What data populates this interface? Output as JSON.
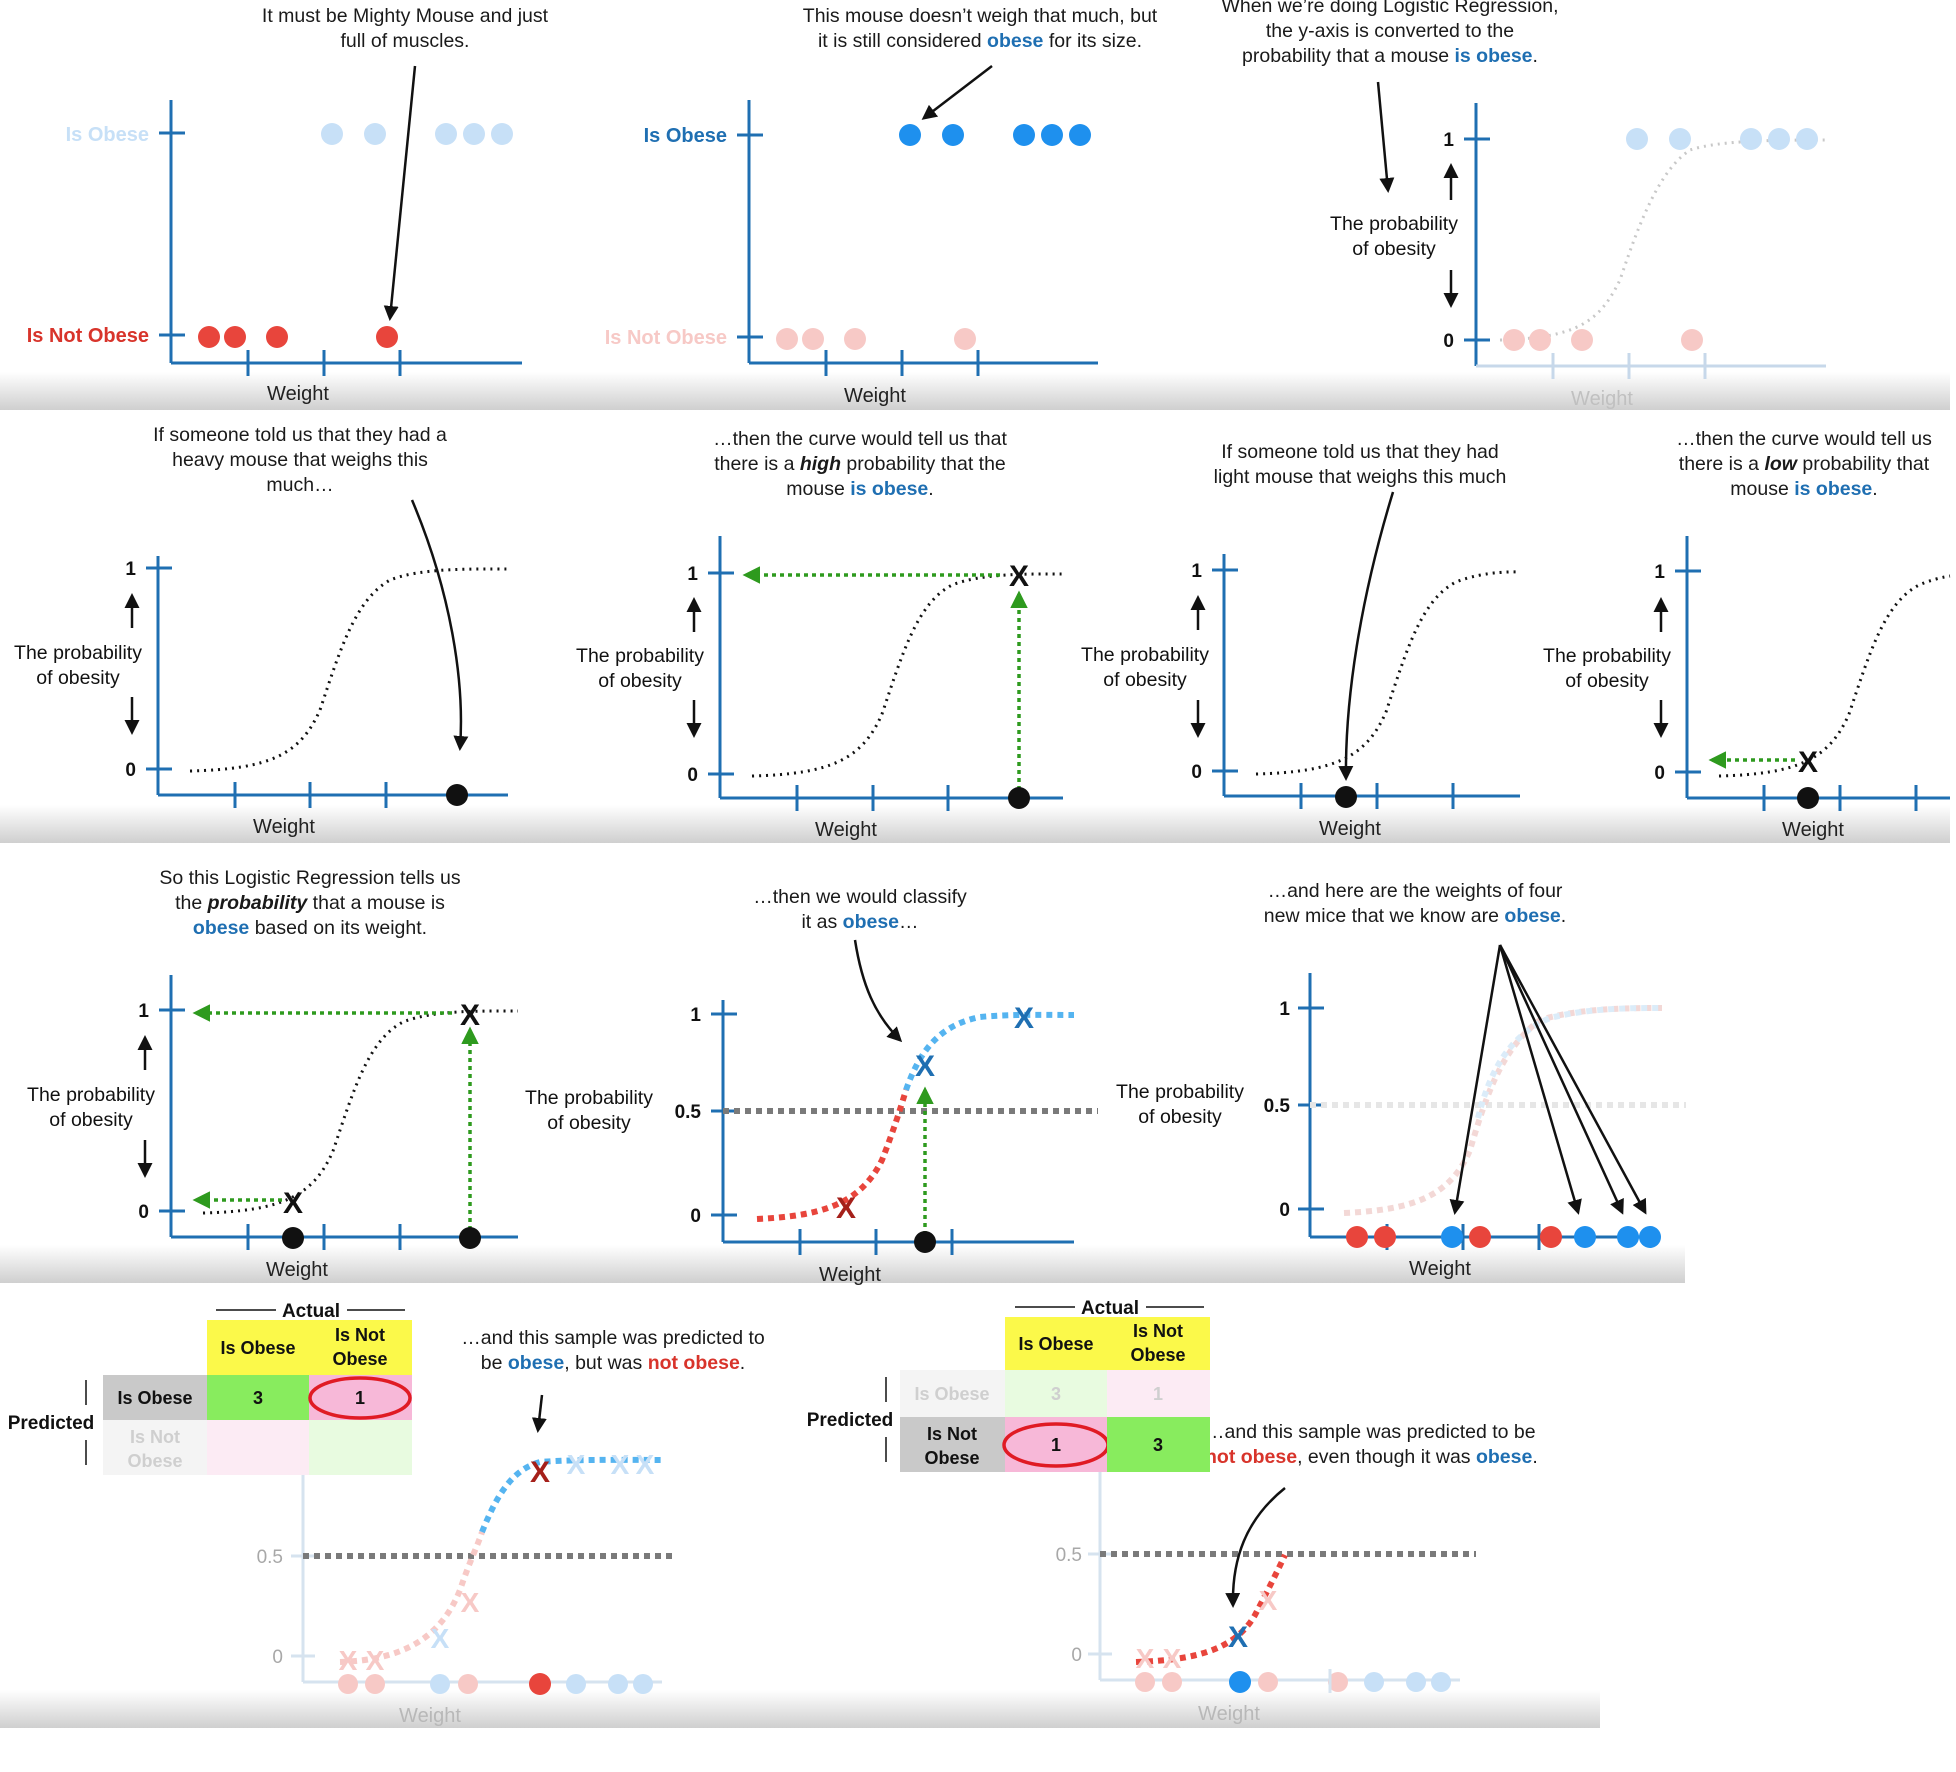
{
  "colors": {
    "axis": "#1f6fb2",
    "obese_blue": "#1e90ee",
    "not_obese_red": "#e8453c",
    "curve": "#111111",
    "green_arrow": "#2e9a1e",
    "threshold": "#7a7a7a",
    "light_blue": "#c7e0f7",
    "light_red": "#f7c9c6",
    "table_yellow": "#fbf94a",
    "table_green": "#88ec5e",
    "table_pink": "#f7b8d8",
    "table_grey": "#c9c9c9",
    "ellipse_red": "#e01b24"
  },
  "icons": {
    "x_marker": "x-marker-icon",
    "point": "data-point-icon",
    "arrow": "arrow-icon"
  },
  "labels": {
    "is_obese": "Is Obese",
    "is_not_obese": "Is Not Obese",
    "weight": "Weight",
    "prob_line1": "The probability",
    "prob_line2": "of obesity",
    "y1": "1",
    "y0": "0",
    "y05": "0.5",
    "x_mark": "X",
    "actual": "Actual",
    "predicted": "Predicted",
    "tbl_is_obese": "Is Obese",
    "tbl_is_not": "Is Not",
    "tbl_obese": "Obese",
    "tbl_3": "3",
    "tbl_1": "1"
  },
  "captions": {
    "p1": [
      "It must be Mighty Mouse and just",
      "full of muscles."
    ],
    "p2_a": "This mouse doesn’t weigh that much, but",
    "p2_b": "it is still considered ",
    "p2_c": "obese",
    "p2_d": " for its size.",
    "p3_a": "When we’re doing Logistic Regression,",
    "p3_b": "the y-axis is converted to the",
    "p3_c": "probability that a mouse ",
    "p3_d": "is obese",
    "p3_e": ".",
    "p4": [
      "If someone told us that they had a",
      "heavy mouse that weighs this",
      "much…"
    ],
    "p5_a": "…then the curve would tell us that",
    "p5_b": "there is a ",
    "p5_c": "high",
    "p5_d": " probability that the",
    "p5_e": "mouse ",
    "p5_f": "is obese",
    "p5_g": ".",
    "p6": [
      "If someone told us that they had",
      "light mouse that weighs this much"
    ],
    "p7_a": "…then the curve would tell us",
    "p7_b": "there is a ",
    "p7_c": "low",
    "p7_d": " probability that",
    "p7_e": "mouse ",
    "p7_f": "is obese",
    "p7_g": ".",
    "p8_a": "So this Logistic Regression tells us",
    "p8_b": "the ",
    "p8_c": "probability",
    "p8_d": " that a mouse is",
    "p8_e": "obese",
    "p8_f": " based on its weight.",
    "p9_a": "…then we would classify",
    "p9_b": "it as ",
    "p9_c": "obese",
    "p9_d": "…",
    "p10_a": "…and here are the weights of four",
    "p10_b": "new mice that we know are ",
    "p10_c": "obese",
    "p10_d": ".",
    "p11_a": "…and this sample was predicted to",
    "p11_b": "be ",
    "p11_c": "obese",
    "p11_d": ", but was ",
    "p11_e": "not obese",
    "p11_f": ".",
    "p12_a": "…and this sample was predicted to be",
    "p12_b": "not obese",
    "p12_c": ", even though it was ",
    "p12_d": "obese",
    "p12_e": "."
  }
}
